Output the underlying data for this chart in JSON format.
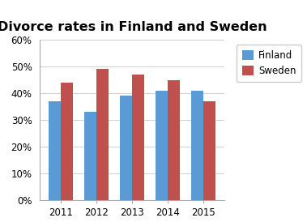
{
  "title": "Divorce rates in Finland and Sweden",
  "categories": [
    "2011",
    "2012",
    "2013",
    "2014",
    "2015"
  ],
  "finland": [
    37,
    33,
    39,
    41,
    41
  ],
  "sweden": [
    44,
    49,
    47,
    45,
    37
  ],
  "finland_color": "#5B9BD5",
  "sweden_color": "#C0504D",
  "ylim": [
    0,
    60
  ],
  "yticks": [
    0,
    10,
    20,
    30,
    40,
    50,
    60
  ],
  "legend_labels": [
    "Finland",
    "Sweden"
  ],
  "title_fontsize": 11.5,
  "tick_fontsize": 8.5,
  "legend_fontsize": 8.5,
  "bar_width": 0.35,
  "background_color": "#ffffff"
}
